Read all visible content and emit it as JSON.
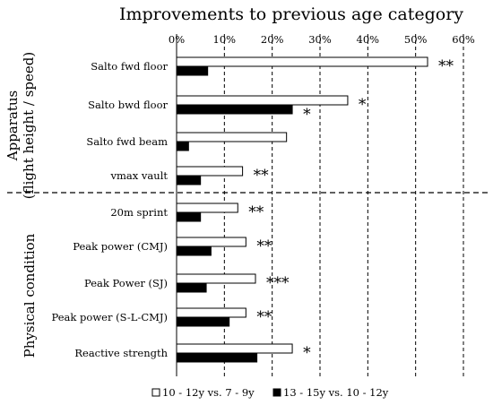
{
  "chart_data": {
    "type": "bar",
    "orientation": "horizontal",
    "title": "Improvements to previous age category",
    "x_ticks": [
      "0%",
      "10%",
      "20%",
      "30%",
      "40%",
      "50%",
      "60%"
    ],
    "xlim": [
      0,
      60
    ],
    "x_unit": "%",
    "groups": [
      {
        "label": "Apparatus\n(flight height / speed)",
        "categories": [
          "Salto fwd floor",
          "Salto bwd floor",
          "Salto fwd beam",
          "vmax vault"
        ]
      },
      {
        "label": "Physical condition",
        "categories": [
          "20m sprint",
          "Peak power (CMJ)",
          "Peak Power (SJ)",
          "Peak power (S-L-CMJ)",
          "Reactive strength"
        ]
      }
    ],
    "categories": [
      "Salto fwd floor",
      "Salto bwd floor",
      "Salto fwd beam",
      "vmax vault",
      "20m sprint",
      "Peak power (CMJ)",
      "Peak Power (SJ)",
      "Peak power (S-L-CMJ)",
      "Reactive strength"
    ],
    "series": [
      {
        "name": "10 - 12y vs. 7 - 9y",
        "color": "#ffffff",
        "values": [
          52.5,
          35.8,
          23.0,
          13.8,
          12.8,
          14.5,
          16.5,
          14.5,
          24.2
        ],
        "significance": [
          "**",
          "*",
          "",
          "**",
          "**",
          "**",
          "***",
          "**",
          "*"
        ]
      },
      {
        "name": "13 - 15y vs. 10 - 12y",
        "color": "#000000",
        "values": [
          6.5,
          24.2,
          2.5,
          5.0,
          5.0,
          7.2,
          6.2,
          11.0,
          16.8
        ],
        "significance": [
          "",
          "*",
          "",
          "",
          "",
          "",
          "",
          "",
          ""
        ]
      }
    ],
    "grid": "dashed vertical at each tick",
    "legend_position": "bottom"
  }
}
